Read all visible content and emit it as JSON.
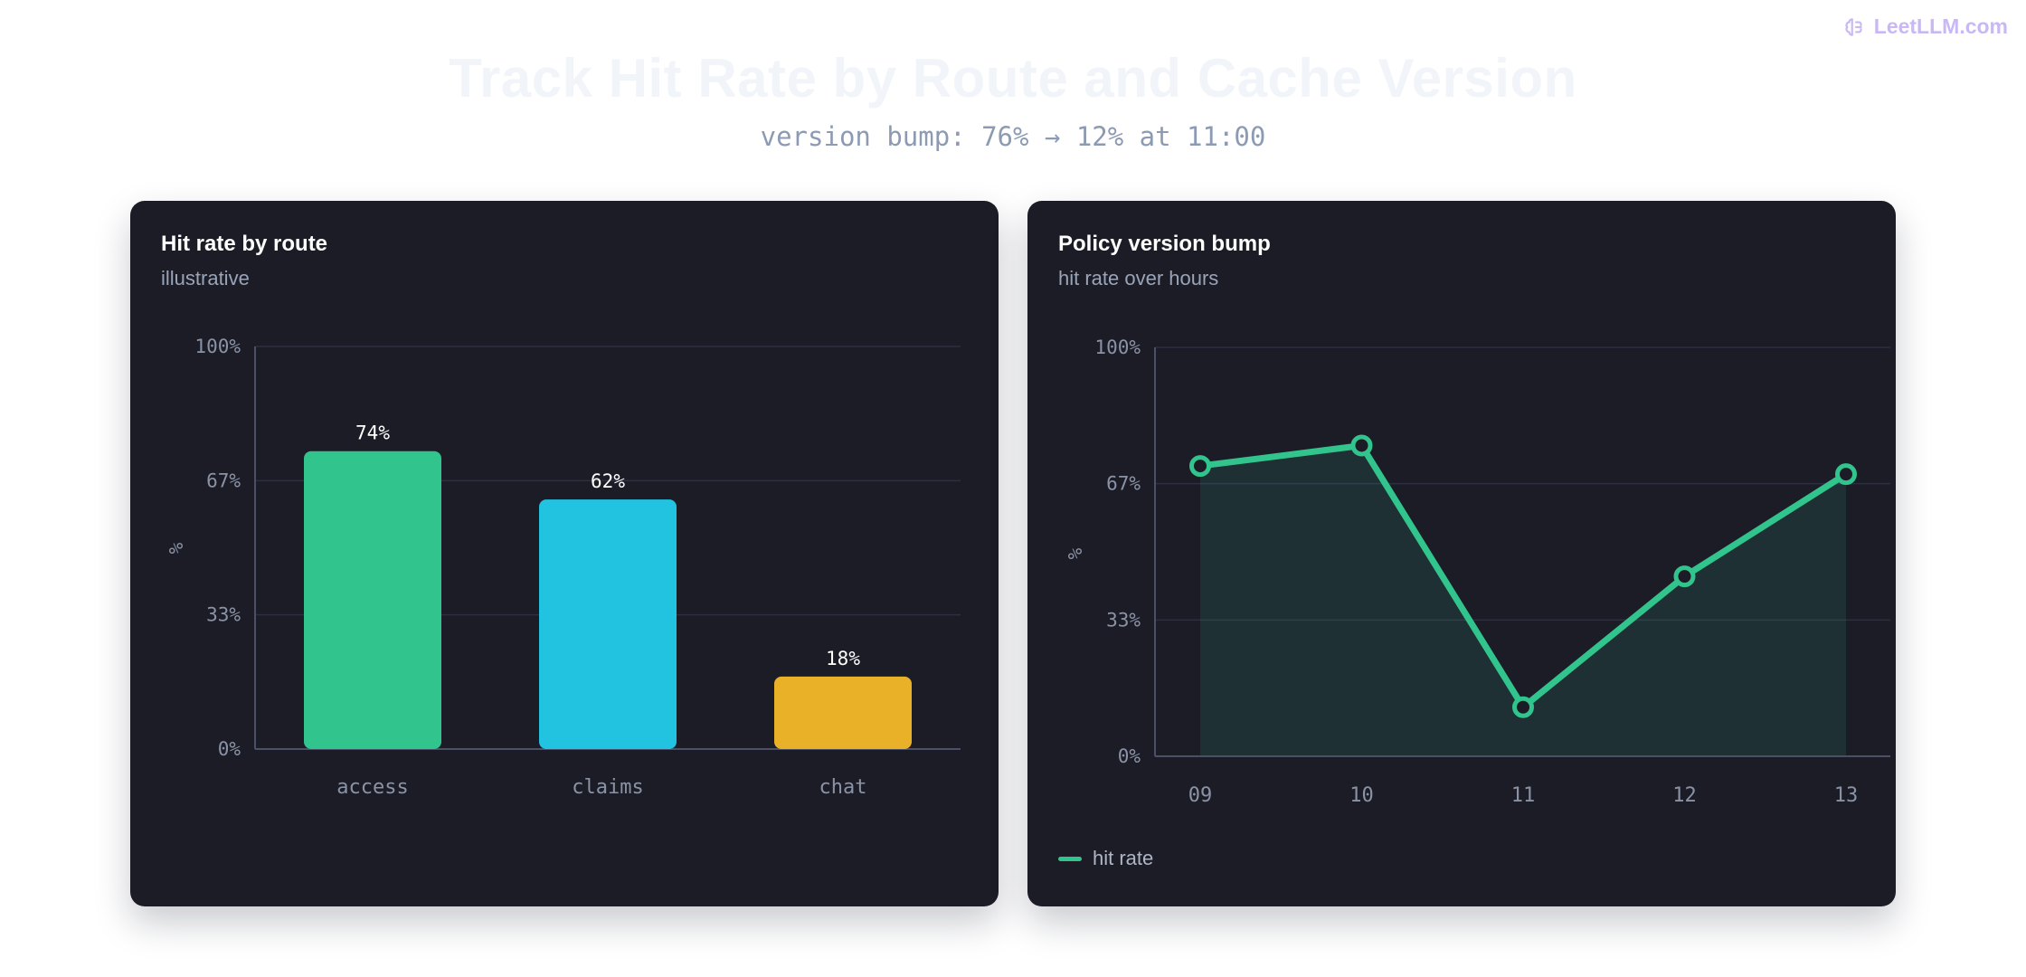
{
  "brand": {
    "name": "LeetLLM.com",
    "icon": "brain-icon",
    "color": "#c9b8f5"
  },
  "page": {
    "title": "Track Hit Rate by Route and Cache Version",
    "subtitle": "version bump: 76% → 12% at 11:00"
  },
  "left_card": {
    "title": "Hit rate by route",
    "subtitle": "illustrative"
  },
  "right_card": {
    "title": "Policy version bump",
    "subtitle": "hit rate over hours",
    "legend": "hit rate"
  },
  "chart_data": [
    {
      "type": "bar",
      "title": "Hit rate by route",
      "subtitle": "illustrative",
      "categories": [
        "access",
        "claims",
        "chat"
      ],
      "values": [
        74,
        62,
        18
      ],
      "value_labels": [
        "74%",
        "62%",
        "18%"
      ],
      "colors": [
        "#31c48d",
        "#22c3e0",
        "#e8b128"
      ],
      "ylabel": "%",
      "ylim": [
        0,
        100
      ],
      "yticks": [
        "0%",
        "33%",
        "67%",
        "100%"
      ],
      "ytick_values": [
        0,
        33.33,
        66.67,
        100
      ],
      "grid": true
    },
    {
      "type": "line",
      "title": "Policy version bump",
      "subtitle": "hit rate over hours",
      "x": [
        "09",
        "10",
        "11",
        "12",
        "13"
      ],
      "series": [
        {
          "name": "hit rate",
          "values": [
            71,
            76,
            12,
            44,
            69
          ],
          "color": "#31c48d"
        }
      ],
      "ylabel": "%",
      "ylim": [
        0,
        100
      ],
      "yticks": [
        "0%",
        "33%",
        "67%",
        "100%"
      ],
      "ytick_values": [
        0,
        33.33,
        66.67,
        100
      ],
      "grid": true,
      "area_fill": true,
      "legend": "bottom-left"
    }
  ]
}
